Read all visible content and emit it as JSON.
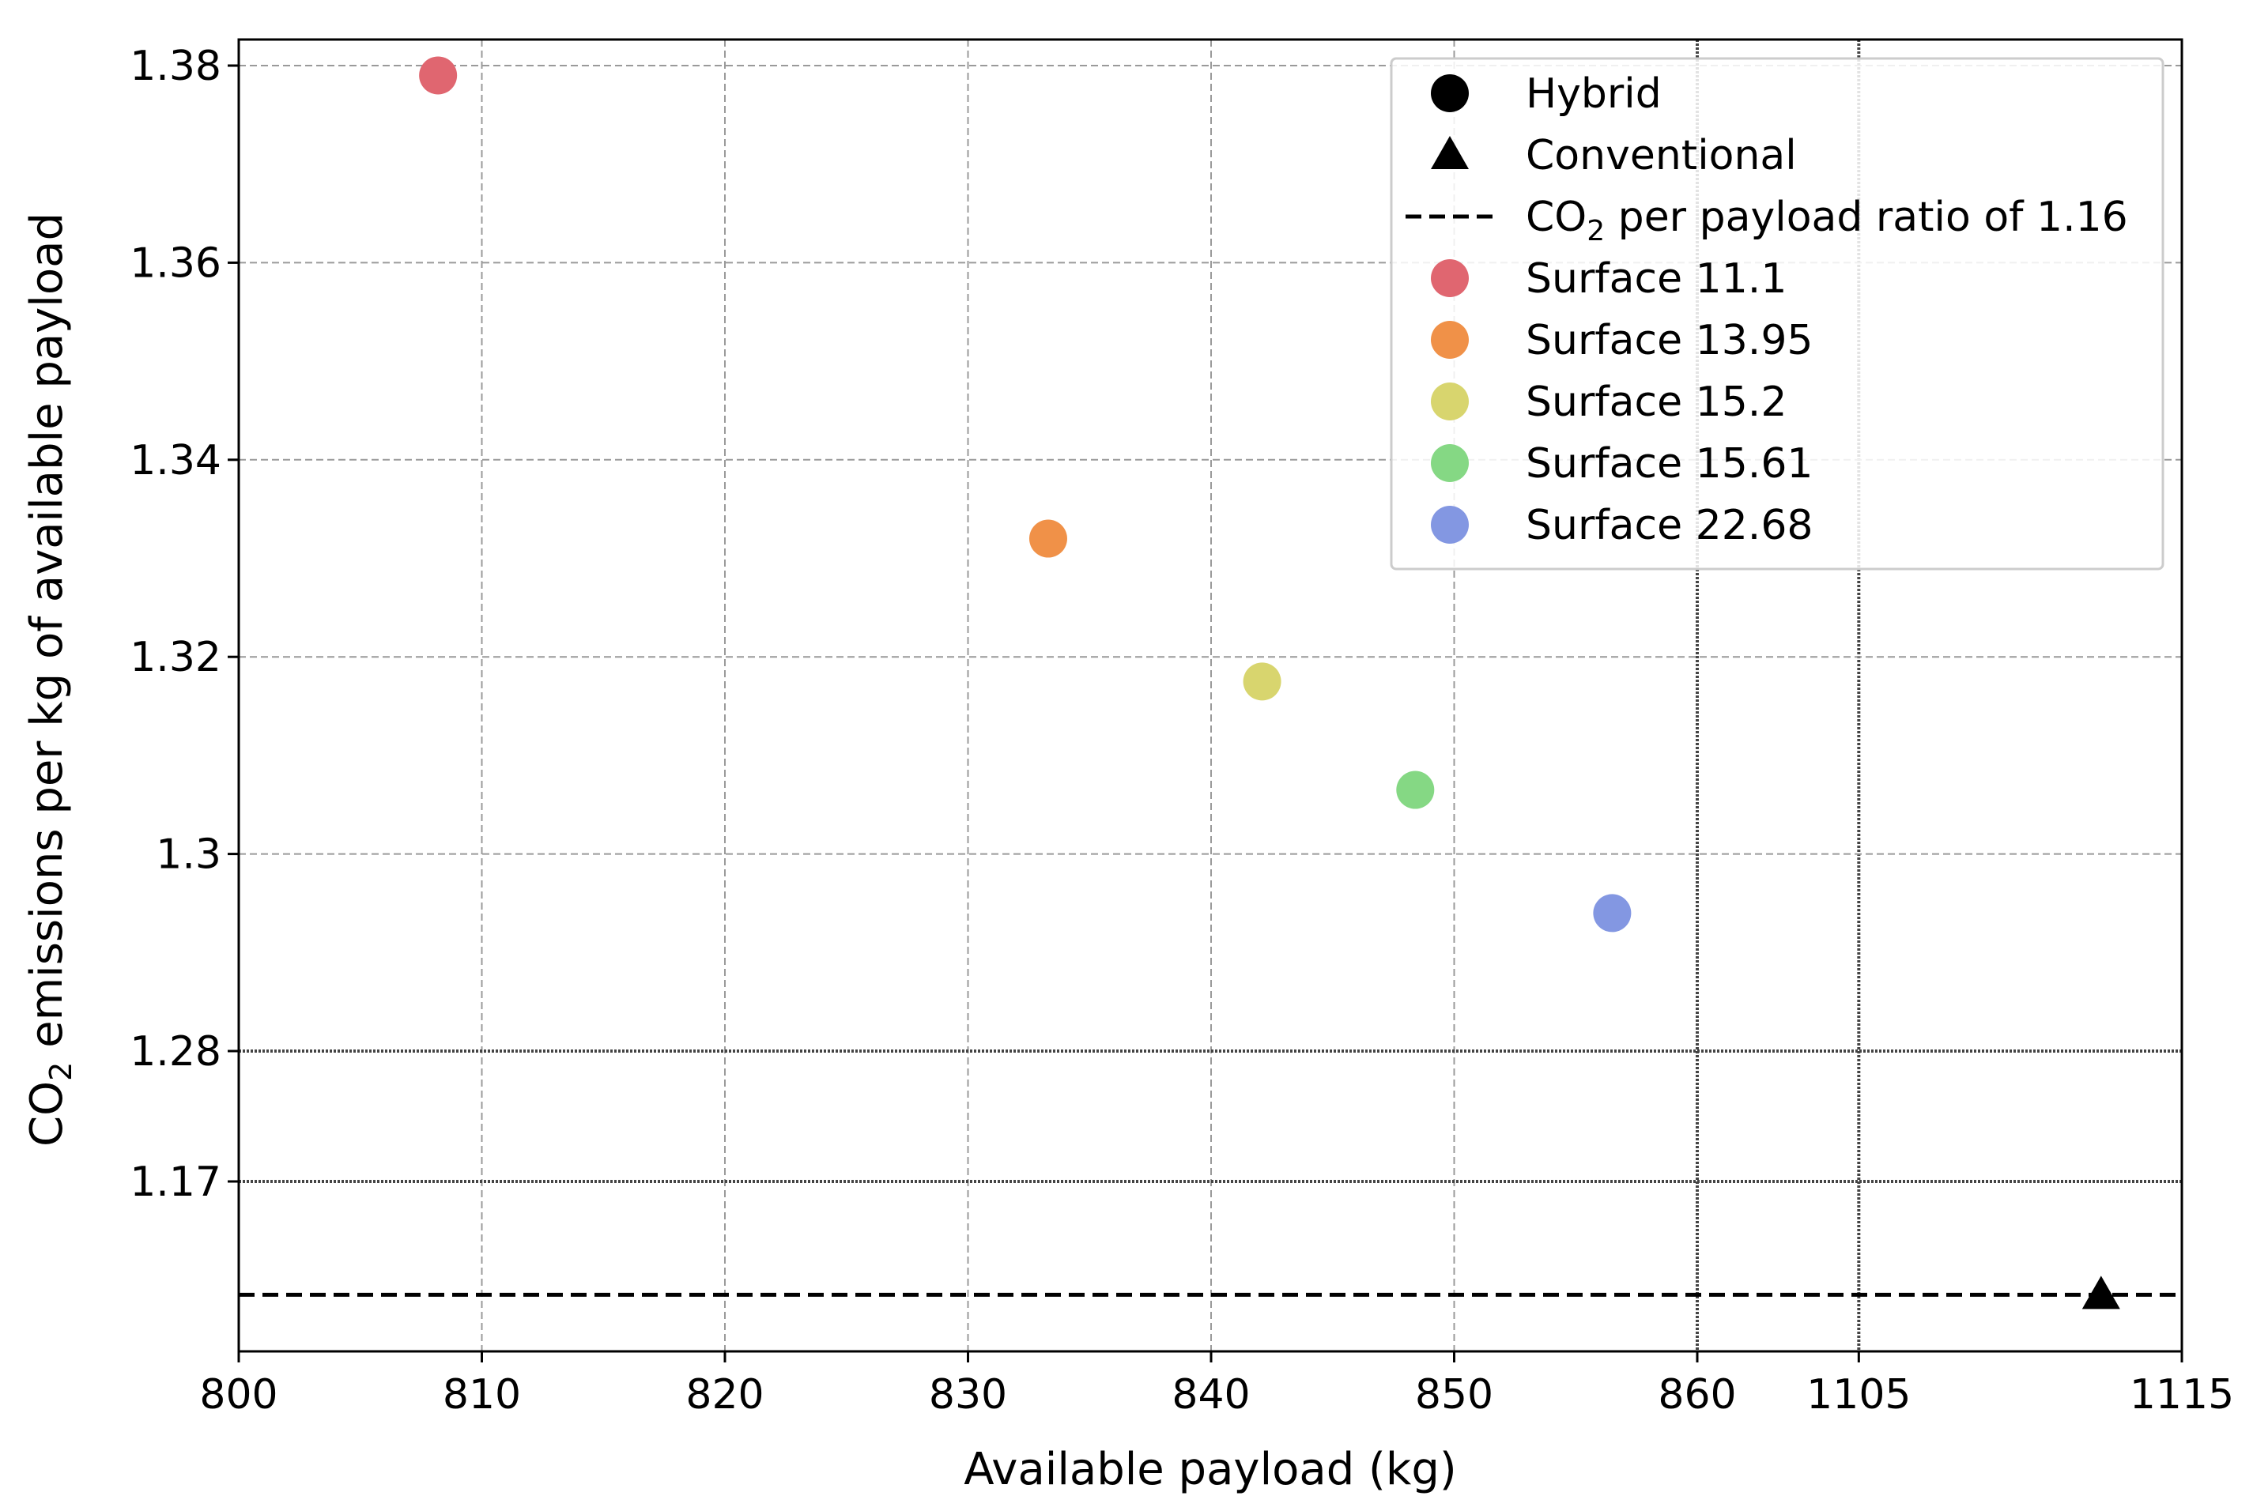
{
  "chart_data": {
    "type": "scatter",
    "title": "",
    "xlabel": "Available payload (kg)",
    "ylabel": {
      "prefix": "CO",
      "subscript": "2",
      "suffix": " emissions per kg of available payload"
    },
    "x_axis": {
      "scale": "broken",
      "segments": [
        {
          "range": [
            800,
            860
          ],
          "ticks": [
            800,
            810,
            820,
            830,
            840,
            850,
            860
          ]
        },
        {
          "range": [
            1100,
            1115
          ],
          "ticks": [
            1105,
            1115
          ]
        }
      ],
      "tick_labels": [
        "800",
        "810",
        "820",
        "830",
        "840",
        "850",
        "860",
        "1105",
        "1115"
      ]
    },
    "y_axis": {
      "scale": "broken",
      "segments": [
        {
          "range": [
            1.155,
            1.17
          ],
          "ticks": [
            1.17
          ]
        },
        {
          "range": [
            1.28,
            1.383
          ],
          "ticks": [
            1.28,
            1.3,
            1.32,
            1.34,
            1.36,
            1.38
          ]
        }
      ],
      "tick_labels": [
        "1.17",
        "1.28",
        "1.3",
        "1.32",
        "1.34",
        "1.36",
        "1.38"
      ]
    },
    "grid": true,
    "series": [
      {
        "name": "Surface 11.1",
        "marker": "circle",
        "color": "#e06670",
        "x": 808.2,
        "y": 1.379
      },
      {
        "name": "Surface 13.95",
        "marker": "circle",
        "color": "#f09148",
        "x": 833.3,
        "y": 1.332
      },
      {
        "name": "Surface 15.2",
        "marker": "circle",
        "color": "#d8d56e",
        "x": 842.1,
        "y": 1.3175
      },
      {
        "name": "Surface 15.61",
        "marker": "circle",
        "color": "#85d884",
        "x": 848.4,
        "y": 1.3065
      },
      {
        "name": "Surface 22.68",
        "marker": "circle",
        "color": "#8397e2",
        "x": 856.5,
        "y": 1.294
      },
      {
        "name": "Conventional",
        "marker": "triangle",
        "color": "#000000",
        "x": 1112.5,
        "y": 1.16
      }
    ],
    "reference_line": {
      "y": 1.16,
      "style": "dashed",
      "color": "#000000"
    },
    "legend": {
      "position": "top-right",
      "entries": [
        {
          "kind": "marker-circle",
          "color": "#000000",
          "label": "Hybrid"
        },
        {
          "kind": "marker-triangle",
          "color": "#000000",
          "label": "Conventional"
        },
        {
          "kind": "line-dashed",
          "color": "#000000",
          "label_prefix": "CO",
          "label_sub": "2",
          "label_suffix": " per payload ratio of 1.16"
        },
        {
          "kind": "marker-circle",
          "color": "#e06670",
          "label": "Surface 11.1"
        },
        {
          "kind": "marker-circle",
          "color": "#f09148",
          "label": "Surface 13.95"
        },
        {
          "kind": "marker-circle",
          "color": "#d8d56e",
          "label": "Surface 15.2"
        },
        {
          "kind": "marker-circle",
          "color": "#85d884",
          "label": "Surface 15.61"
        },
        {
          "kind": "marker-circle",
          "color": "#8397e2",
          "label": "Surface 22.68"
        }
      ]
    }
  }
}
